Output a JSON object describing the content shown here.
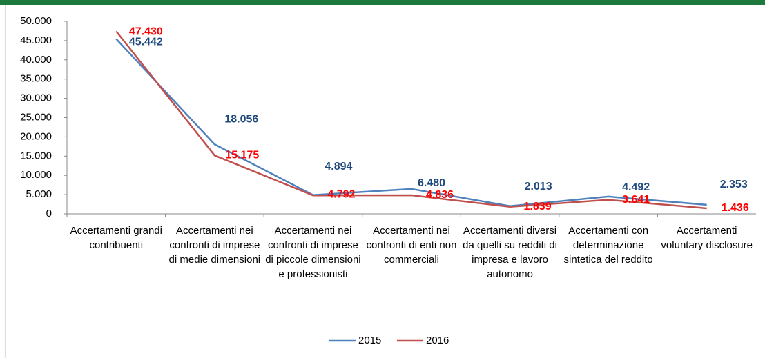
{
  "chart_data": {
    "type": "line",
    "categories": [
      "Accertamenti grandi contribuenti",
      "Accertamenti nei confronti di imprese di medie dimensioni",
      "Accertamenti nei confronti di imprese di piccole dimensioni e professionisti",
      "Accertamenti nei confronti di enti non commerciali",
      "Accertamenti diversi da quelli su redditi di impresa e lavoro autonomo",
      "Accertamenti con determinazione sintetica del reddito",
      "Accertamenti voluntary disclosure"
    ],
    "series": [
      {
        "name": "2015",
        "color": "#4f81bd",
        "label_color": "#1f497d",
        "values": [
          45442,
          18056,
          4894,
          6480,
          2013,
          4492,
          2353
        ],
        "value_labels": [
          "45.442",
          "18.056",
          "4.894",
          "6.480",
          "2.013",
          "4.492",
          "2.353"
        ]
      },
      {
        "name": "2016",
        "color": "#c0504d",
        "label_color": "#ff0000",
        "values": [
          47430,
          15175,
          4792,
          4836,
          1839,
          3641,
          1436
        ],
        "value_labels": [
          "47.430",
          "15.175",
          "4.792",
          "4.836",
          "1.839",
          "3.641",
          "1.436"
        ]
      }
    ],
    "ylim": [
      0,
      50000
    ],
    "yticks": [
      0,
      {
        "value": 5000,
        "label": "5.000"
      },
      {
        "value": 10000,
        "label": "10.000"
      },
      {
        "value": 15000,
        "label": "15.000"
      },
      {
        "value": 20000,
        "label": "20.000"
      },
      {
        "value": 25000,
        "label": "25.000"
      },
      {
        "value": 30000,
        "label": "30.000"
      },
      {
        "value": 35000,
        "label": "35.000"
      },
      {
        "value": 40000,
        "label": "40.000"
      },
      {
        "value": 45000,
        "label": "45.000"
      },
      {
        "value": 50000,
        "label": "50.000"
      }
    ],
    "legend": "bottom"
  }
}
